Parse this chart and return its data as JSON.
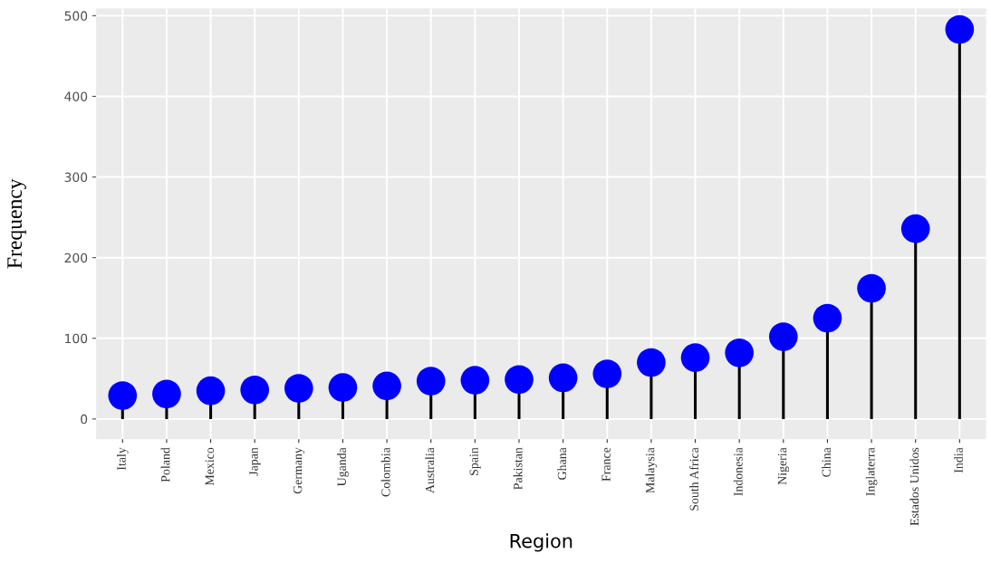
{
  "chart_data": {
    "type": "lollipop",
    "xlabel": "Region",
    "ylabel": "Frequency",
    "categories": [
      "Italy",
      "Poland",
      "Mexico",
      "Japan",
      "Germany",
      "Uganda",
      "Colombia",
      "Australia",
      "Spain",
      "Pakistan",
      "Ghana",
      "France",
      "Malaysia",
      "South Africa",
      "Indonesia",
      "Nigeria",
      "China",
      "Inglaterra",
      "Estados Unidos",
      "India"
    ],
    "values": [
      29,
      31,
      35,
      36,
      38,
      39,
      41,
      47,
      48,
      49,
      51,
      56,
      70,
      76,
      82,
      102,
      125,
      162,
      236,
      483
    ],
    "color": "#0000ff",
    "marker": "circle",
    "ylim": [
      -25,
      509
    ],
    "yticks": [
      0,
      100,
      200,
      300,
      400,
      500
    ],
    "grid": true
  }
}
